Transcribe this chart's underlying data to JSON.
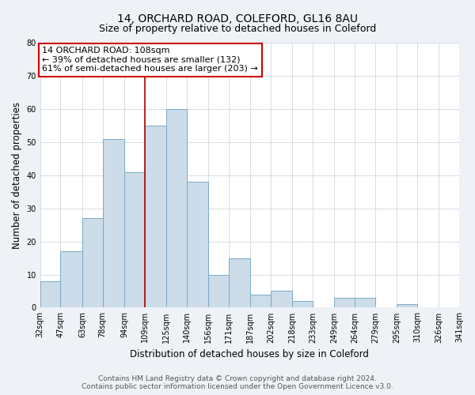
{
  "title": "14, ORCHARD ROAD, COLEFORD, GL16 8AU",
  "subtitle": "Size of property relative to detached houses in Coleford",
  "xlabel": "Distribution of detached houses by size in Coleford",
  "ylabel": "Number of detached properties",
  "bin_labels": [
    "32sqm",
    "47sqm",
    "63sqm",
    "78sqm",
    "94sqm",
    "109sqm",
    "125sqm",
    "140sqm",
    "156sqm",
    "171sqm",
    "187sqm",
    "202sqm",
    "218sqm",
    "233sqm",
    "249sqm",
    "264sqm",
    "279sqm",
    "295sqm",
    "310sqm",
    "326sqm",
    "341sqm"
  ],
  "bin_edges": [
    32,
    47,
    63,
    78,
    94,
    109,
    125,
    140,
    156,
    171,
    187,
    202,
    218,
    233,
    249,
    264,
    279,
    295,
    310,
    326,
    341
  ],
  "bar_heights": [
    8,
    17,
    27,
    51,
    41,
    55,
    60,
    38,
    10,
    15,
    4,
    5,
    2,
    0,
    3,
    3,
    0,
    1,
    0,
    0
  ],
  "bar_color": "#ccdce8",
  "bar_edge_color": "#7aaac8",
  "vline_x": 109,
  "vline_color": "#aa0000",
  "annotation_line1": "14 ORCHARD ROAD: 108sqm",
  "annotation_line2": "← 39% of detached houses are smaller (132)",
  "annotation_line3": "61% of semi-detached houses are larger (203) →",
  "box_edge_color": "#cc0000",
  "ylim": [
    0,
    80
  ],
  "yticks": [
    0,
    10,
    20,
    30,
    40,
    50,
    60,
    70,
    80
  ],
  "footer_line1": "Contains HM Land Registry data © Crown copyright and database right 2024.",
  "footer_line2": "Contains public sector information licensed under the Open Government Licence v3.0.",
  "bg_color": "#eef2f6",
  "plot_bg_color": "#ffffff",
  "title_fontsize": 10,
  "subtitle_fontsize": 9,
  "axis_label_fontsize": 8.5,
  "tick_fontsize": 7,
  "annotation_fontsize": 8,
  "footer_fontsize": 6.5
}
